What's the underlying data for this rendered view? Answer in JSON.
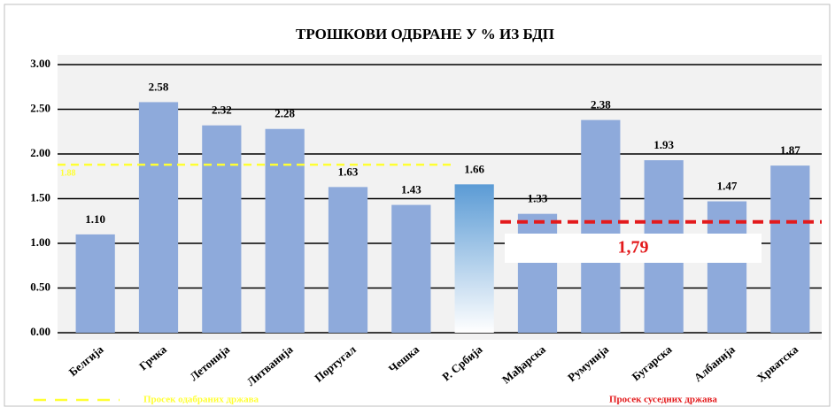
{
  "chart_data": {
    "type": "bar",
    "title": "ТРОШКОВИ ОДБРАНЕ У % ИЗ БДП",
    "categories": [
      "Белгија",
      "Грчка",
      "Летонија",
      "Литванија",
      "Португал",
      "Чешка",
      "Р. Србија",
      "Мађарска",
      "Румунија",
      "Бугарска",
      "Албанија",
      "Хрватска"
    ],
    "values": [
      1.1,
      2.58,
      2.32,
      2.28,
      1.63,
      1.43,
      1.66,
      1.33,
      2.38,
      1.93,
      1.47,
      1.87
    ],
    "value_labels": [
      "1.10",
      "2.58",
      "2.32",
      "2.28",
      "1.63",
      "1.43",
      "1.66",
      "1.33",
      "2.38",
      "1.93",
      "1.47",
      "1.87"
    ],
    "color": "#8eaadb",
    "highlight": "Р. Србија",
    "highlight_color": "#5b9bd5",
    "ylim": [
      0,
      3
    ],
    "yticks": [
      {
        "value": 0,
        "label": "0.00"
      },
      {
        "value": 0.5,
        "label": "0.50"
      },
      {
        "value": 1,
        "label": "1.00"
      },
      {
        "value": 1.5,
        "label": "1.50"
      },
      {
        "value": 2,
        "label": "2.00"
      },
      {
        "value": 2.5,
        "label": "2.50"
      },
      {
        "value": 3,
        "label": "3.00"
      }
    ],
    "grid": true,
    "reference_lines": [
      {
        "name": "Просек одабраних држава",
        "value": 1.88,
        "label": "1.88",
        "color": "#ffff33"
      },
      {
        "name": "Просек суседних држава",
        "value": 1.24,
        "color": "#e31a1c"
      }
    ],
    "annotation": "1,79"
  }
}
